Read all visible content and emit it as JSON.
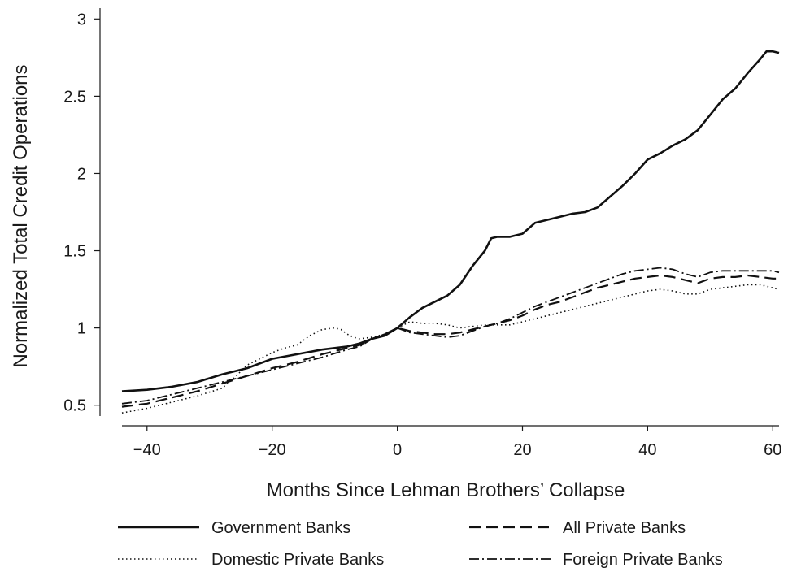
{
  "chart_data": {
    "type": "line",
    "title": "",
    "xlabel": "Months Since Lehman Brothers’ Collapse",
    "ylabel": "Normalized Total Credit Operations",
    "xlim": [
      -44,
      61
    ],
    "ylim": [
      0.43,
      3.07
    ],
    "x_ticks": [
      -40,
      -20,
      0,
      20,
      40,
      60
    ],
    "x_tick_labels": [
      "−40",
      "−20",
      "0",
      "20",
      "40",
      "60"
    ],
    "y_ticks": [
      0.5,
      1,
      1.5,
      2,
      2.5,
      3
    ],
    "y_tick_labels": [
      "0.5",
      "1",
      "1.5",
      "2",
      "2.5",
      "3"
    ],
    "grid": false,
    "legend_position": "bottom",
    "series": [
      {
        "name": "Government Banks",
        "dash": "",
        "width": 2.6,
        "points": [
          [
            -44,
            0.59
          ],
          [
            -40,
            0.6
          ],
          [
            -36,
            0.62
          ],
          [
            -32,
            0.65
          ],
          [
            -28,
            0.7
          ],
          [
            -24,
            0.74
          ],
          [
            -20,
            0.8
          ],
          [
            -16,
            0.83
          ],
          [
            -12,
            0.86
          ],
          [
            -8,
            0.88
          ],
          [
            -6,
            0.9
          ],
          [
            -4,
            0.93
          ],
          [
            -2,
            0.95
          ],
          [
            0,
            1.0
          ],
          [
            2,
            1.07
          ],
          [
            4,
            1.13
          ],
          [
            6,
            1.17
          ],
          [
            8,
            1.21
          ],
          [
            10,
            1.28
          ],
          [
            12,
            1.4
          ],
          [
            14,
            1.5
          ],
          [
            15,
            1.58
          ],
          [
            16,
            1.59
          ],
          [
            18,
            1.59
          ],
          [
            20,
            1.61
          ],
          [
            22,
            1.68
          ],
          [
            24,
            1.7
          ],
          [
            26,
            1.72
          ],
          [
            28,
            1.74
          ],
          [
            30,
            1.75
          ],
          [
            32,
            1.78
          ],
          [
            34,
            1.85
          ],
          [
            36,
            1.92
          ],
          [
            38,
            2.0
          ],
          [
            40,
            2.09
          ],
          [
            42,
            2.13
          ],
          [
            44,
            2.18
          ],
          [
            46,
            2.22
          ],
          [
            48,
            2.28
          ],
          [
            50,
            2.38
          ],
          [
            52,
            2.48
          ],
          [
            54,
            2.55
          ],
          [
            56,
            2.65
          ],
          [
            58,
            2.74
          ],
          [
            59,
            2.79
          ],
          [
            60,
            2.79
          ],
          [
            61,
            2.78
          ]
        ]
      },
      {
        "name": "All Private Banks",
        "dash": "14 7",
        "width": 2.2,
        "points": [
          [
            -44,
            0.49
          ],
          [
            -40,
            0.51
          ],
          [
            -36,
            0.55
          ],
          [
            -32,
            0.59
          ],
          [
            -28,
            0.64
          ],
          [
            -24,
            0.69
          ],
          [
            -20,
            0.74
          ],
          [
            -16,
            0.78
          ],
          [
            -12,
            0.83
          ],
          [
            -8,
            0.87
          ],
          [
            -6,
            0.89
          ],
          [
            -4,
            0.93
          ],
          [
            -2,
            0.96
          ],
          [
            0,
            1.0
          ],
          [
            2,
            0.98
          ],
          [
            4,
            0.97
          ],
          [
            6,
            0.96
          ],
          [
            8,
            0.96
          ],
          [
            10,
            0.97
          ],
          [
            12,
            0.99
          ],
          [
            14,
            1.01
          ],
          [
            16,
            1.03
          ],
          [
            18,
            1.05
          ],
          [
            20,
            1.08
          ],
          [
            22,
            1.12
          ],
          [
            24,
            1.15
          ],
          [
            26,
            1.17
          ],
          [
            28,
            1.2
          ],
          [
            30,
            1.23
          ],
          [
            32,
            1.26
          ],
          [
            34,
            1.28
          ],
          [
            36,
            1.3
          ],
          [
            38,
            1.32
          ],
          [
            40,
            1.33
          ],
          [
            42,
            1.34
          ],
          [
            44,
            1.33
          ],
          [
            46,
            1.31
          ],
          [
            48,
            1.29
          ],
          [
            50,
            1.32
          ],
          [
            52,
            1.33
          ],
          [
            54,
            1.33
          ],
          [
            56,
            1.34
          ],
          [
            58,
            1.33
          ],
          [
            60,
            1.32
          ],
          [
            61,
            1.32
          ]
        ]
      },
      {
        "name": "Domestic Private Banks",
        "dash": "1.5 3.5",
        "width": 1.6,
        "points": [
          [
            -44,
            0.45
          ],
          [
            -40,
            0.48
          ],
          [
            -36,
            0.52
          ],
          [
            -32,
            0.56
          ],
          [
            -28,
            0.61
          ],
          [
            -26,
            0.68
          ],
          [
            -24,
            0.76
          ],
          [
            -22,
            0.8
          ],
          [
            -20,
            0.84
          ],
          [
            -18,
            0.87
          ],
          [
            -16,
            0.89
          ],
          [
            -14,
            0.95
          ],
          [
            -12,
            0.99
          ],
          [
            -10,
            1.0
          ],
          [
            -9,
            0.99
          ],
          [
            -8,
            0.96
          ],
          [
            -7,
            0.94
          ],
          [
            -6,
            0.93
          ],
          [
            -4,
            0.94
          ],
          [
            -2,
            0.96
          ],
          [
            0,
            1.0
          ],
          [
            2,
            1.04
          ],
          [
            4,
            1.03
          ],
          [
            6,
            1.03
          ],
          [
            8,
            1.02
          ],
          [
            10,
            1.0
          ],
          [
            12,
            1.01
          ],
          [
            14,
            1.02
          ],
          [
            16,
            1.02
          ],
          [
            18,
            1.02
          ],
          [
            20,
            1.04
          ],
          [
            22,
            1.06
          ],
          [
            24,
            1.08
          ],
          [
            26,
            1.1
          ],
          [
            28,
            1.12
          ],
          [
            30,
            1.14
          ],
          [
            32,
            1.16
          ],
          [
            34,
            1.18
          ],
          [
            36,
            1.2
          ],
          [
            38,
            1.22
          ],
          [
            40,
            1.24
          ],
          [
            42,
            1.25
          ],
          [
            44,
            1.24
          ],
          [
            46,
            1.22
          ],
          [
            48,
            1.22
          ],
          [
            50,
            1.25
          ],
          [
            52,
            1.26
          ],
          [
            54,
            1.27
          ],
          [
            56,
            1.28
          ],
          [
            58,
            1.28
          ],
          [
            60,
            1.26
          ],
          [
            61,
            1.25
          ]
        ]
      },
      {
        "name": "Foreign Private Banks",
        "dash": "12 4 2 4",
        "width": 1.8,
        "points": [
          [
            -44,
            0.51
          ],
          [
            -40,
            0.53
          ],
          [
            -36,
            0.57
          ],
          [
            -32,
            0.61
          ],
          [
            -28,
            0.65
          ],
          [
            -24,
            0.69
          ],
          [
            -20,
            0.73
          ],
          [
            -16,
            0.77
          ],
          [
            -12,
            0.81
          ],
          [
            -8,
            0.86
          ],
          [
            -6,
            0.88
          ],
          [
            -4,
            0.93
          ],
          [
            -2,
            0.96
          ],
          [
            0,
            1.0
          ],
          [
            2,
            0.97
          ],
          [
            4,
            0.96
          ],
          [
            6,
            0.95
          ],
          [
            8,
            0.94
          ],
          [
            10,
            0.95
          ],
          [
            12,
            0.98
          ],
          [
            14,
            1.01
          ],
          [
            16,
            1.03
          ],
          [
            18,
            1.06
          ],
          [
            20,
            1.1
          ],
          [
            22,
            1.14
          ],
          [
            24,
            1.17
          ],
          [
            26,
            1.2
          ],
          [
            28,
            1.23
          ],
          [
            30,
            1.26
          ],
          [
            32,
            1.29
          ],
          [
            34,
            1.32
          ],
          [
            36,
            1.35
          ],
          [
            38,
            1.37
          ],
          [
            40,
            1.38
          ],
          [
            42,
            1.39
          ],
          [
            44,
            1.38
          ],
          [
            46,
            1.35
          ],
          [
            48,
            1.33
          ],
          [
            50,
            1.36
          ],
          [
            52,
            1.37
          ],
          [
            54,
            1.37
          ],
          [
            56,
            1.37
          ],
          [
            58,
            1.37
          ],
          [
            60,
            1.37
          ],
          [
            61,
            1.36
          ]
        ]
      }
    ]
  }
}
